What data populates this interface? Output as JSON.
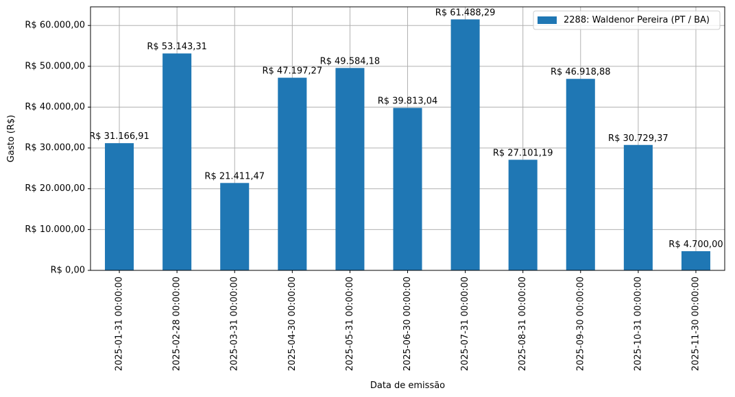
{
  "chart_data": {
    "type": "bar",
    "xlabel": "Data de emissão",
    "ylabel": "Gasto (R$)",
    "categories": [
      "2025-01-31 00:00:00",
      "2025-02-28 00:00:00",
      "2025-03-31 00:00:00",
      "2025-04-30 00:00:00",
      "2025-05-31 00:00:00",
      "2025-06-30 00:00:00",
      "2025-07-31 00:00:00",
      "2025-08-31 00:00:00",
      "2025-09-30 00:00:00",
      "2025-10-31 00:00:00",
      "2025-11-30 00:00:00"
    ],
    "series": [
      {
        "name": "2288: Waldenor Pereira (PT / BA)",
        "color": "#1f77b4",
        "values": [
          31166.91,
          53143.31,
          21411.47,
          47197.27,
          49584.18,
          39813.04,
          61488.29,
          27101.19,
          46918.88,
          30729.37,
          4700.0
        ],
        "labels": [
          "R$ 31.166,91",
          "R$ 53.143,31",
          "R$ 21.411,47",
          "R$ 47.197,27",
          "R$ 49.584,18",
          "R$ 39.813,04",
          "R$ 61.488,29",
          "R$ 27.101,19",
          "R$ 46.918,88",
          "R$ 30.729,37",
          "R$ 4.700,00"
        ]
      }
    ],
    "yticks": [
      0,
      10000,
      20000,
      30000,
      40000,
      50000,
      60000
    ],
    "ytick_labels": [
      "R$ 0,00",
      "R$ 10.000,00",
      "R$ 20.000,00",
      "R$ 30.000,00",
      "R$ 40.000,00",
      "R$ 50.000,00",
      "R$ 60.000,00"
    ],
    "ylim": [
      0,
      64563
    ],
    "grid": true,
    "legend_position": "top-right"
  }
}
